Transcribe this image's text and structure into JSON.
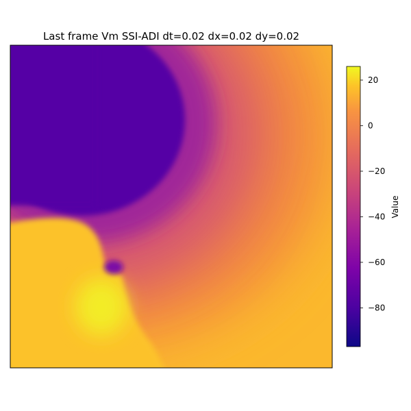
{
  "chart_data": {
    "type": "heatmap",
    "title": "Last frame Vm SSI-ADI dt=0.02 dx=0.02 dy=0.02",
    "xlabel": "",
    "ylabel": "",
    "colormap": "plasma",
    "colorbar": {
      "label": "Value",
      "range": [
        -97,
        26
      ],
      "ticks": [
        20,
        0,
        -20,
        -40,
        -60,
        -80
      ],
      "tick_labels": [
        "20",
        "0",
        "−20",
        "−40",
        "−60",
        "−80"
      ]
    },
    "axes_ticks_visible": false,
    "description_regions": [
      {
        "region": "upper-left blob",
        "value": -85
      },
      {
        "region": "lower-left blob",
        "value": 20
      },
      {
        "region": "right side gradient",
        "value": 5
      }
    ]
  }
}
